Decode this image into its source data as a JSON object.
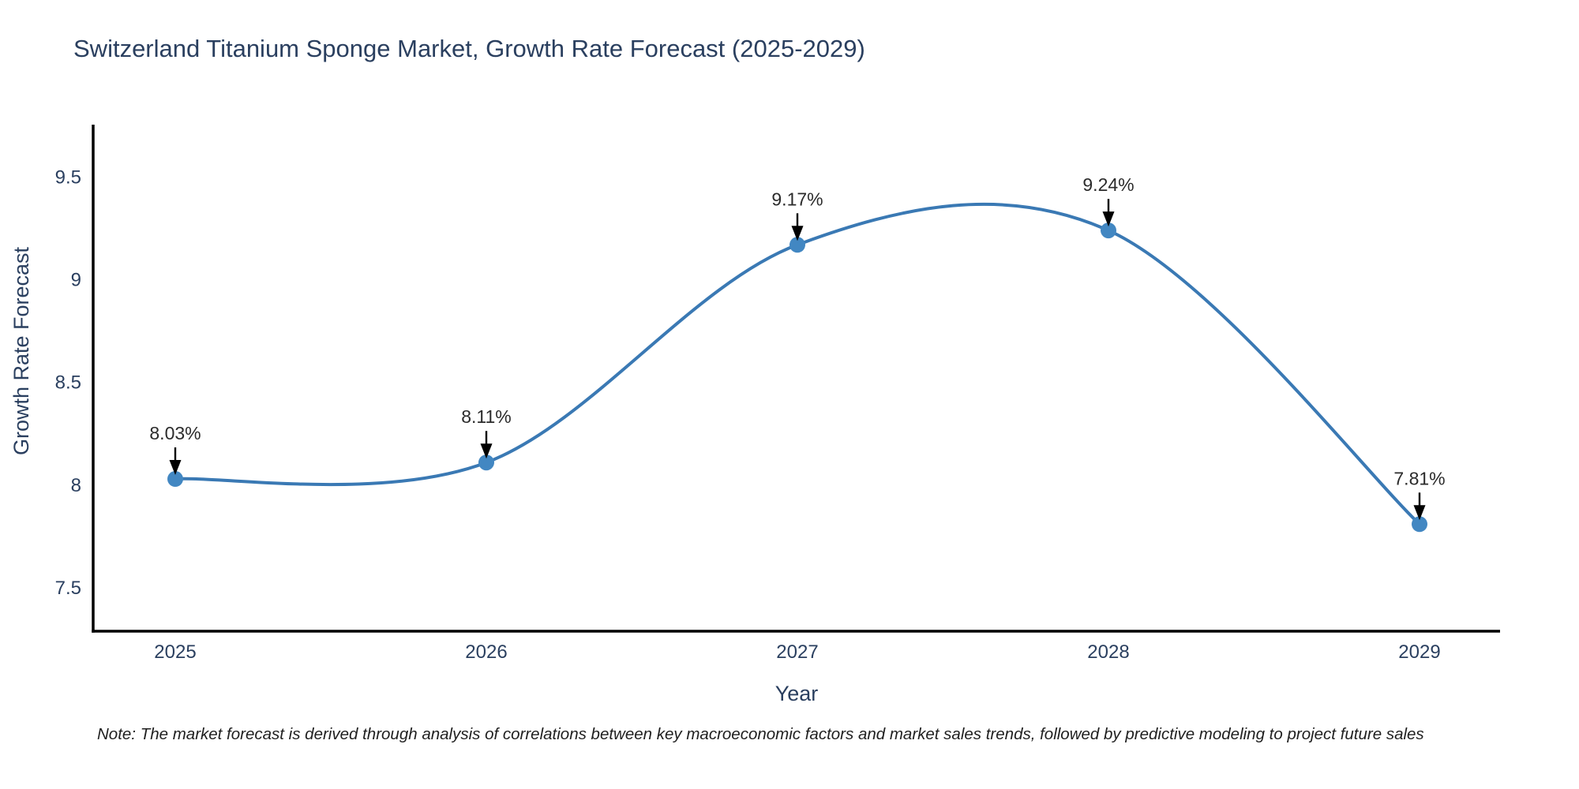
{
  "page": {
    "background": "#ffffff"
  },
  "chart_data": {
    "type": "line",
    "title": "Switzerland Titanium Sponge Market, Growth Rate Forecast (2025-2029)",
    "xlabel": "Year",
    "ylabel": "Growth Rate Forecast",
    "x": [
      2025,
      2026,
      2027,
      2028,
      2029
    ],
    "series": [
      {
        "name": "Growth Rate Forecast",
        "values": [
          8.03,
          8.11,
          9.17,
          9.24,
          7.81
        ]
      }
    ],
    "point_labels": [
      "8.03%",
      "8.11%",
      "9.17%",
      "9.24%",
      "7.81%"
    ],
    "xtick_labels": [
      "2025",
      "2026",
      "2027",
      "2028",
      "2029"
    ],
    "ytick_values": [
      7.5,
      8,
      8.5,
      9,
      9.5
    ],
    "ytick_labels": [
      "7.5",
      "8",
      "8.5",
      "9",
      "9.5"
    ],
    "ylim": [
      7.26,
      9.72
    ],
    "line_shape": "spline",
    "grid": false,
    "legend_position": "none",
    "colors": {
      "line": "#3a79b4",
      "marker": "#4287c2",
      "axis": "#000000",
      "tick_text": "#2a3f5f",
      "axis_title_text": "#2a3f5f",
      "annotation_text": "#2b2b2b",
      "arrow": "#000000"
    }
  },
  "note": {
    "text": "Note: The market forecast is derived through analysis of correlations between key macroeconomic factors and market sales trends, followed by predictive modeling to project future sales"
  }
}
